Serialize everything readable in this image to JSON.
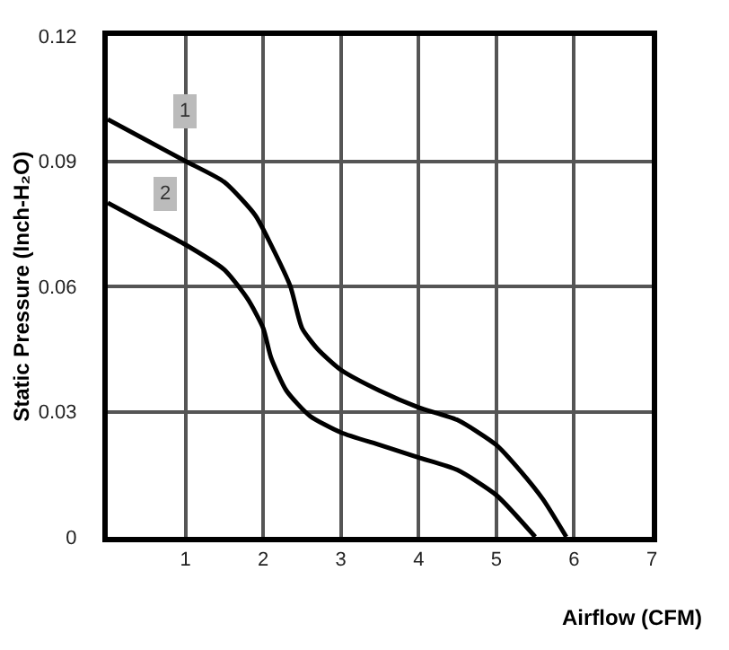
{
  "chart_data": {
    "type": "line",
    "xlabel": "Airflow (CFM)",
    "ylabel": "Static Pressure (Inch-H₂O)",
    "xlim": [
      0,
      7
    ],
    "xticks": [
      1,
      2,
      3,
      4,
      5,
      6,
      7
    ],
    "ylim": [
      0,
      0.12
    ],
    "yticks": [
      0,
      0.03,
      0.06,
      0.09,
      0.12
    ],
    "grid": true,
    "marker": "none",
    "line_style": "solid",
    "series": [
      {
        "color": "#000000",
        "x": [
          0,
          0.5,
          1,
          1.5,
          1.9,
          2.1,
          2.35,
          2.5,
          2.7,
          3,
          3.5,
          4,
          4.5,
          5,
          5.3,
          5.6,
          5.9
        ],
        "values": [
          0.1,
          0.095,
          0.09,
          0.085,
          0.077,
          0.07,
          0.06,
          0.05,
          0.045,
          0.04,
          0.035,
          0.031,
          0.028,
          0.022,
          0.016,
          0.009,
          0
        ]
      },
      {
        "color": "#000000",
        "x": [
          0,
          0.5,
          1,
          1.5,
          1.8,
          2,
          2.1,
          2.3,
          2.6,
          3,
          3.5,
          4,
          4.5,
          5,
          5.5
        ],
        "values": [
          0.08,
          0.075,
          0.07,
          0.064,
          0.057,
          0.05,
          0.043,
          0.035,
          0.029,
          0.025,
          0.022,
          0.019,
          0.016,
          0.01,
          0
        ]
      }
    ],
    "annotations": [
      {
        "text": "1",
        "x": 1,
        "y": 0.102
      },
      {
        "text": "2",
        "x": 0.75,
        "y": 0.082
      }
    ]
  }
}
